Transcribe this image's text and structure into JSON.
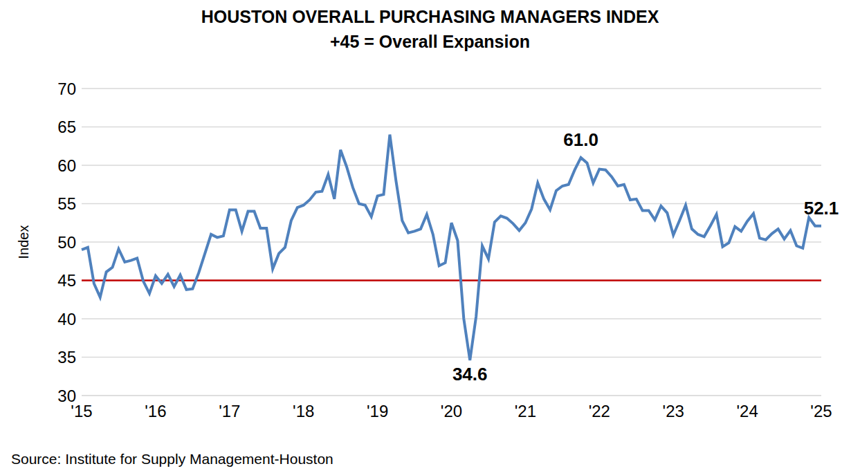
{
  "chart_data": {
    "type": "line",
    "title": "HOUSTON OVERALL PURCHASING MANAGERS INDEX",
    "subtitle": "+45 = Overall Expansion",
    "y_label": "Index",
    "source": "Source: Institute for Supply Management-Houston",
    "categories": [
      "'15",
      null,
      null,
      null,
      null,
      null,
      null,
      null,
      null,
      null,
      null,
      null,
      "'16",
      null,
      null,
      null,
      null,
      null,
      null,
      null,
      null,
      null,
      null,
      null,
      "'17",
      null,
      null,
      null,
      null,
      null,
      null,
      null,
      null,
      null,
      null,
      null,
      "'18",
      null,
      null,
      null,
      null,
      null,
      null,
      null,
      null,
      null,
      null,
      null,
      "'19",
      null,
      null,
      null,
      null,
      null,
      null,
      null,
      null,
      null,
      null,
      null,
      "'20",
      null,
      null,
      null,
      null,
      null,
      null,
      null,
      null,
      null,
      null,
      null,
      "'21",
      null,
      null,
      null,
      null,
      null,
      null,
      null,
      null,
      null,
      null,
      null,
      "'22",
      null,
      null,
      null,
      null,
      null,
      null,
      null,
      null,
      null,
      null,
      null,
      "'23",
      null,
      null,
      null,
      null,
      null,
      null,
      null,
      null,
      null,
      null,
      null,
      "'24",
      null,
      null,
      null,
      null,
      null,
      null,
      null,
      null,
      null,
      null,
      null,
      "'25"
    ],
    "values": [
      49.0,
      49.3,
      44.6,
      42.8,
      46.1,
      46.7,
      49.1,
      47.4,
      47.6,
      47.9,
      44.9,
      43.3,
      45.6,
      44.6,
      45.8,
      44.2,
      45.7,
      43.8,
      43.9,
      46.0,
      48.5,
      51.0,
      50.6,
      50.8,
      54.2,
      54.2,
      51.4,
      54.0,
      54.0,
      51.8,
      51.8,
      46.5,
      48.5,
      49.3,
      52.8,
      54.5,
      54.8,
      55.5,
      56.5,
      56.6,
      58.8,
      55.6,
      62.0,
      59.8,
      57.1,
      55.0,
      54.8,
      53.3,
      56.0,
      56.2,
      64.0,
      58.0,
      52.8,
      51.2,
      51.4,
      51.7,
      53.6,
      51.0,
      46.9,
      47.3,
      52.5,
      50.2,
      40.0,
      34.6,
      40.3,
      49.5,
      47.8,
      52.6,
      53.4,
      53.1,
      52.4,
      51.5,
      52.5,
      54.3,
      57.7,
      55.6,
      54.2,
      56.7,
      57.3,
      57.5,
      59.4,
      61.0,
      60.3,
      57.7,
      59.5,
      59.4,
      58.5,
      57.3,
      57.5,
      55.5,
      55.6,
      54.1,
      54.1,
      52.9,
      54.7,
      53.8,
      50.9,
      52.8,
      54.8,
      51.7,
      51.0,
      50.7,
      52.1,
      53.6,
      49.4,
      49.9,
      52.0,
      51.4,
      52.7,
      53.7,
      50.5,
      50.3,
      51.1,
      51.7,
      50.4,
      51.5,
      49.5,
      49.2,
      53.2,
      52.1,
      52.1
    ],
    "color": "#4f81bd",
    "reference_line": {
      "value": 45,
      "color": "#c00000"
    },
    "annotations": [
      {
        "index": 81,
        "value": 61.0,
        "text": "61.0"
      },
      {
        "index": 63,
        "value": 34.6,
        "text": "34.6"
      },
      {
        "index": 120,
        "value": 52.1,
        "text": "52.1"
      }
    ],
    "ylim": [
      30,
      70
    ],
    "yticks": [
      30,
      35,
      40,
      45,
      50,
      55,
      60,
      65,
      70
    ],
    "grid": true
  }
}
